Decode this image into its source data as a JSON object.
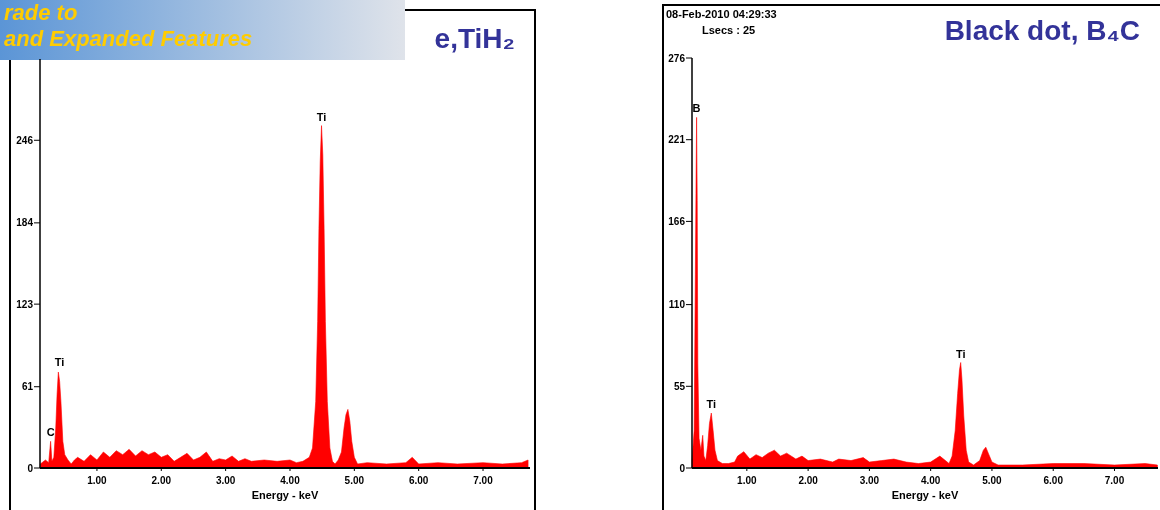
{
  "chart_data": [
    {
      "type": "area",
      "title": "e,TiH₂",
      "xlabel": "Energy - keV",
      "xlim": [
        0.115,
        7.73
      ],
      "ylim": [
        0,
        307
      ],
      "xticks": [
        {
          "value": 1,
          "label": "1.00"
        },
        {
          "value": 2,
          "label": "2.00"
        },
        {
          "value": 3,
          "label": "3.00"
        },
        {
          "value": 4,
          "label": "4.00"
        },
        {
          "value": 5,
          "label": "5.00"
        },
        {
          "value": 6,
          "label": "6.00"
        },
        {
          "value": 7,
          "label": "7.00"
        }
      ],
      "yticks": [
        0,
        61,
        123,
        184,
        246
      ],
      "annotations": [
        "rade to",
        "and Expanded Features",
        {
          "text": "C",
          "x": 0.28,
          "y": 20
        },
        {
          "text": "Ti",
          "x": 0.42,
          "y": 73
        },
        {
          "text": "Ti",
          "x": 4.49,
          "y": 257
        }
      ],
      "series": [
        {
          "color": "#ff0000",
          "x": [
            0.12,
            0.2,
            0.25,
            0.28,
            0.3,
            0.33,
            0.36,
            0.38,
            0.4,
            0.42,
            0.44,
            0.47,
            0.5,
            0.55,
            0.6,
            0.65,
            0.7,
            0.8,
            0.9,
            1.0,
            1.1,
            1.2,
            1.3,
            1.4,
            1.5,
            1.6,
            1.7,
            1.8,
            1.9,
            2.0,
            2.1,
            2.2,
            2.3,
            2.4,
            2.5,
            2.6,
            2.7,
            2.8,
            2.9,
            3.0,
            3.1,
            3.2,
            3.3,
            3.4,
            3.6,
            3.8,
            4.0,
            4.1,
            4.2,
            4.3,
            4.35,
            4.4,
            4.43,
            4.45,
            4.47,
            4.49,
            4.51,
            4.53,
            4.55,
            4.58,
            4.62,
            4.66,
            4.7,
            4.75,
            4.8,
            4.84,
            4.87,
            4.9,
            4.93,
            4.96,
            5.0,
            5.05,
            5.2,
            5.5,
            5.8,
            5.9,
            6.0,
            6.3,
            6.6,
            7.0,
            7.3,
            7.6,
            7.7
          ],
          "values": [
            3,
            6,
            4,
            20,
            5,
            8,
            30,
            55,
            72,
            65,
            50,
            20,
            10,
            6,
            3,
            6,
            8,
            5,
            10,
            6,
            12,
            8,
            13,
            10,
            14,
            9,
            13,
            10,
            12,
            8,
            10,
            5,
            8,
            11,
            6,
            8,
            12,
            5,
            7,
            6,
            9,
            5,
            7,
            5,
            6,
            5,
            6,
            4,
            5,
            8,
            15,
            50,
            110,
            180,
            230,
            257,
            235,
            180,
            110,
            50,
            15,
            5,
            3,
            6,
            12,
            30,
            40,
            44,
            35,
            20,
            8,
            3,
            4,
            3,
            4,
            8,
            3,
            4,
            3,
            4,
            3,
            4,
            6
          ]
        }
      ]
    },
    {
      "type": "area",
      "title": "Black dot, B₄C",
      "xlabel": "Energy - keV",
      "xlim": [
        0.105,
        7.71
      ],
      "ylim": [
        0,
        276
      ],
      "xticks": [
        {
          "value": 1,
          "label": "1.00"
        },
        {
          "value": 2,
          "label": "2.00"
        },
        {
          "value": 3,
          "label": "3.00"
        },
        {
          "value": 4,
          "label": "4.00"
        },
        {
          "value": 5,
          "label": "5.00"
        },
        {
          "value": 6,
          "label": "6.00"
        },
        {
          "value": 7,
          "label": "7.00"
        }
      ],
      "yticks": [
        0,
        55,
        110,
        166,
        221,
        276
      ],
      "annotations": [
        "08-Feb-2010 04:29:33",
        "Lsecs : 25",
        {
          "text": "B",
          "x": 0.18,
          "y": 236
        },
        {
          "text": "Ti",
          "x": 0.42,
          "y": 37
        },
        {
          "text": "Ti",
          "x": 4.49,
          "y": 71
        }
      ],
      "series": [
        {
          "color": "#ff0000",
          "x": [
            0.105,
            0.14,
            0.16,
            0.17,
            0.18,
            0.19,
            0.2,
            0.22,
            0.25,
            0.28,
            0.3,
            0.33,
            0.36,
            0.39,
            0.42,
            0.45,
            0.48,
            0.52,
            0.6,
            0.7,
            0.8,
            0.85,
            0.95,
            1.05,
            1.15,
            1.25,
            1.35,
            1.45,
            1.55,
            1.65,
            1.8,
            1.9,
            2.0,
            2.2,
            2.4,
            2.5,
            2.7,
            2.9,
            3.0,
            3.2,
            3.4,
            3.6,
            3.8,
            4.0,
            4.15,
            4.3,
            4.35,
            4.4,
            4.44,
            4.47,
            4.49,
            4.51,
            4.54,
            4.58,
            4.62,
            4.7,
            4.8,
            4.86,
            4.9,
            4.94,
            5.0,
            5.1,
            5.5,
            6.0,
            6.5,
            7.0,
            7.5,
            7.7
          ],
          "values": [
            5,
            25,
            130,
            185,
            236,
            180,
            70,
            20,
            12,
            22,
            8,
            5,
            15,
            30,
            37,
            25,
            12,
            5,
            3,
            3,
            4,
            8,
            11,
            6,
            9,
            7,
            10,
            12,
            8,
            10,
            6,
            8,
            5,
            6,
            4,
            6,
            5,
            7,
            4,
            5,
            6,
            4,
            3,
            4,
            8,
            3,
            8,
            25,
            50,
            66,
            71,
            60,
            35,
            12,
            4,
            2,
            5,
            12,
            14,
            10,
            4,
            2,
            2,
            3,
            3,
            2,
            3,
            2
          ]
        }
      ]
    }
  ]
}
